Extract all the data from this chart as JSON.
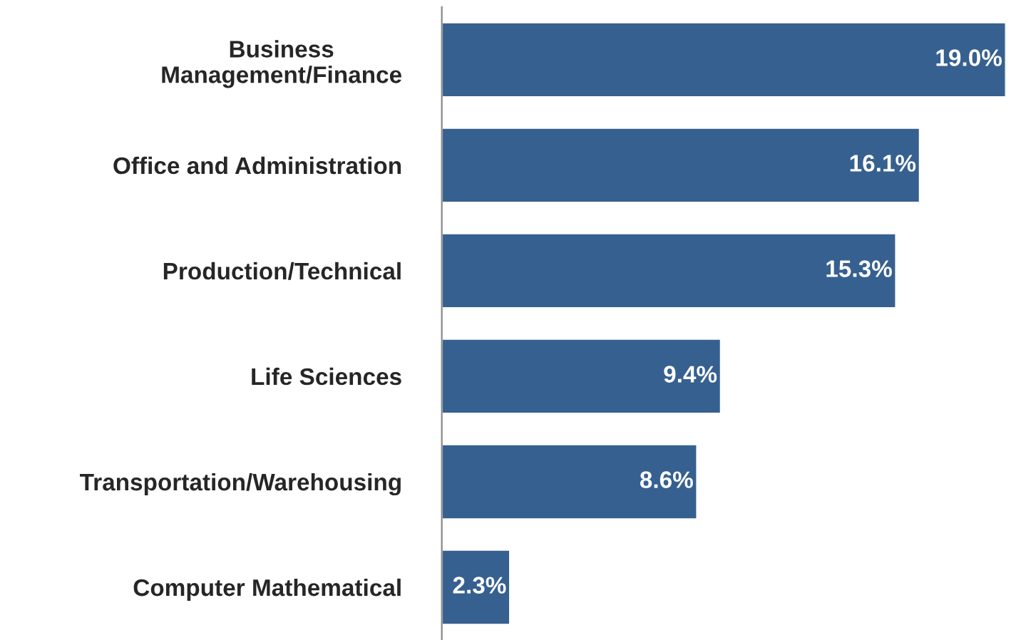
{
  "chart_data": {
    "type": "bar",
    "orientation": "horizontal",
    "categories": [
      "Business\nManagement/Finance",
      "Office and Administration",
      "Production/Technical",
      "Life Sciences",
      "Transportation/Warehousing",
      "Computer Mathematical"
    ],
    "values": [
      19.0,
      16.1,
      15.3,
      9.4,
      8.6,
      2.3
    ],
    "value_labels": [
      "19.0%",
      "16.1%",
      "15.3%",
      "9.4%",
      "8.6%",
      "2.3%"
    ],
    "color": "#36608f",
    "grid": false,
    "legend": false
  }
}
